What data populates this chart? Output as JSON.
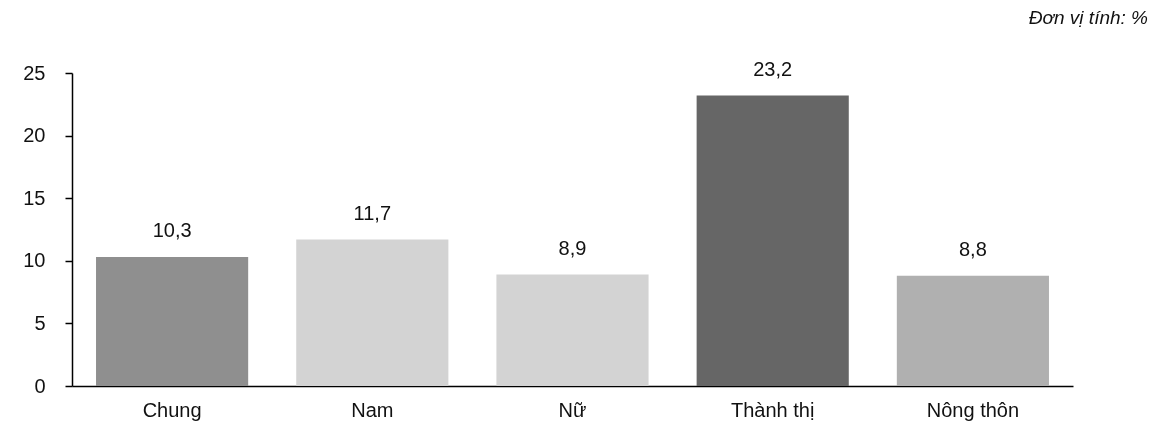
{
  "chart_data": {
    "type": "bar",
    "categories": [
      "Chung",
      "Nam",
      "Nữ",
      "Thành thị",
      "Nông thôn"
    ],
    "values": [
      10.3,
      11.7,
      8.9,
      23.2,
      8.8
    ],
    "colors": [
      "#8f8f8f",
      "#d3d3d3",
      "#d3d3d3",
      "#666666",
      "#b0b0b0"
    ],
    "value_labels": [
      "10,3",
      "11,7",
      "8,9",
      "23,2",
      "8,8"
    ],
    "ylim": [
      0,
      25
    ],
    "yticks": [
      0,
      5,
      10,
      15,
      20,
      25
    ],
    "annotations": [
      "Đơn vị tính: %"
    ]
  }
}
